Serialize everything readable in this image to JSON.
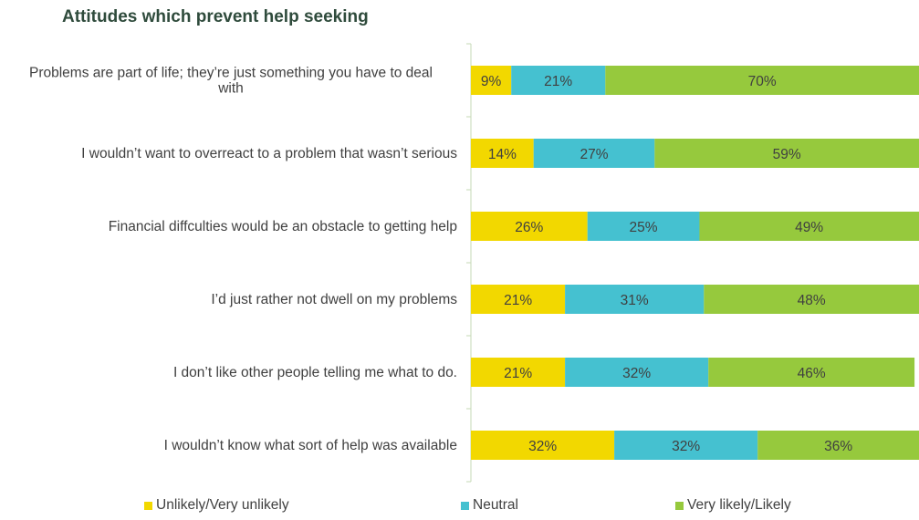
{
  "chart_data": {
    "type": "bar",
    "orientation": "horizontal",
    "stacked": true,
    "title": "Attitudes which prevent help seeking",
    "categories": [
      "Problems are part of life; they’re just something you have to deal with",
      "I wouldn’t want to overreact to a problem that wasn’t serious",
      "Financial diffculties would be an obstacle to getting help",
      "I’d just rather not dwell on my problems",
      "I don’t like other people telling me what to do.",
      "I wouldn’t know what sort of help was available"
    ],
    "series": [
      {
        "name": "Unlikely/Very unlikely",
        "color": "#f2d800",
        "values": [
          9,
          14,
          26,
          21,
          21,
          32
        ]
      },
      {
        "name": "Neutral",
        "color": "#45c1d0",
        "values": [
          21,
          27,
          25,
          31,
          32,
          32
        ]
      },
      {
        "name": "Very likely/Likely",
        "color": "#96c93d",
        "values": [
          70,
          59,
          49,
          48,
          46,
          36
        ]
      }
    ],
    "value_suffix": "%",
    "xlim": [
      0,
      100
    ],
    "grid": false,
    "legend_position": "bottom"
  }
}
